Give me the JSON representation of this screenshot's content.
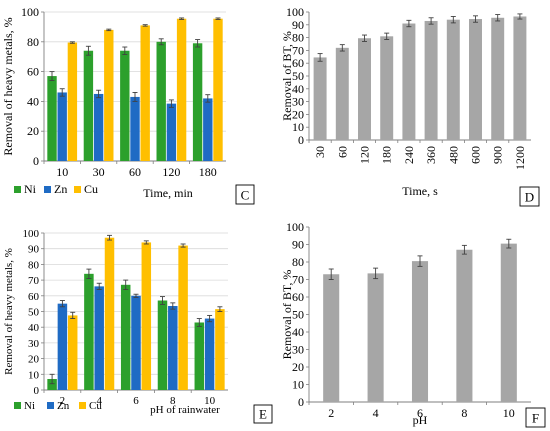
{
  "colors": {
    "Ni": "#2ca02c",
    "Zn": "#1f6bc4",
    "Cu": "#ffbf00",
    "gray": "#a6a6a6",
    "axis": "#7f7f7f",
    "grid": "#d9d9d9",
    "err": "#404040"
  },
  "chart_data": [
    {
      "id": "C",
      "type": "bar",
      "panel_label": "C",
      "title": "",
      "xlabel": "Time, min",
      "ylabel": "Removal of heavy metals, %",
      "categories": [
        "10",
        "30",
        "60",
        "120",
        "180"
      ],
      "ylim": [
        0,
        100
      ],
      "yticks": [
        0,
        20,
        40,
        60,
        80,
        100
      ],
      "grid": true,
      "legend_position": "bottom-left",
      "series": [
        {
          "name": "Ni",
          "values": [
            57,
            74,
            74,
            80,
            79
          ],
          "errors": [
            3,
            3,
            2.5,
            2,
            2.5
          ]
        },
        {
          "name": "Zn",
          "values": [
            46,
            45,
            43,
            38.5,
            42
          ],
          "errors": [
            2.5,
            2.5,
            3,
            2.5,
            2.5
          ]
        },
        {
          "name": "Cu",
          "values": [
            79.5,
            88,
            91,
            95.5,
            95.5
          ],
          "errors": [
            0.5,
            0.5,
            0.5,
            0.5,
            0.5
          ]
        }
      ]
    },
    {
      "id": "D",
      "type": "bar",
      "panel_label": "D",
      "title": "",
      "xlabel": "Time, s",
      "ylabel": "Removal of BT, %",
      "categories": [
        "30",
        "60",
        "120",
        "180",
        "240",
        "360",
        "480",
        "600",
        "900",
        "1200"
      ],
      "ylim": [
        0,
        100
      ],
      "yticks": [
        0,
        10,
        20,
        30,
        40,
        50,
        60,
        70,
        80,
        90,
        100
      ],
      "grid": false,
      "series": [
        {
          "name": "",
          "values": [
            64.5,
            72,
            79.5,
            81,
            91,
            93,
            94,
            94.5,
            95.5,
            96.5
          ],
          "errors": [
            3,
            2.5,
            2.5,
            2.5,
            2.5,
            2.5,
            2.5,
            2.5,
            2.5,
            2
          ]
        }
      ]
    },
    {
      "id": "E",
      "type": "bar",
      "panel_label": "E",
      "title": "",
      "xlabel": "pH of rainwater",
      "ylabel": "Removal of heavy metals, %",
      "categories": [
        "2",
        "4",
        "6",
        "8",
        "10"
      ],
      "ylim": [
        0,
        100
      ],
      "yticks": [
        0,
        10,
        20,
        30,
        40,
        50,
        60,
        70,
        80,
        90,
        100
      ],
      "grid": true,
      "legend_position": "bottom-left",
      "series": [
        {
          "name": "Ni",
          "values": [
            7,
            74,
            67,
            57,
            43
          ],
          "errors": [
            3,
            3,
            3,
            2.5,
            2.5
          ]
        },
        {
          "name": "Zn",
          "values": [
            55,
            66,
            60,
            53.5,
            45.5
          ],
          "errors": [
            2,
            2,
            1,
            2,
            2
          ]
        },
        {
          "name": "Cu",
          "values": [
            47.5,
            97,
            94,
            92,
            51.5
          ],
          "errors": [
            2,
            1.5,
            1,
            1,
            1.5
          ]
        }
      ]
    },
    {
      "id": "F",
      "type": "bar",
      "panel_label": "F",
      "title": "",
      "xlabel": "pH",
      "ylabel": "Removal of BT, %",
      "categories": [
        "2",
        "4",
        "6",
        "8",
        "10"
      ],
      "ylim": [
        0,
        100
      ],
      "yticks": [
        0,
        10,
        20,
        30,
        40,
        50,
        60,
        70,
        80,
        90,
        100
      ],
      "grid": false,
      "series": [
        {
          "name": "",
          "values": [
            73,
            73.5,
            80.5,
            87,
            90.5
          ],
          "errors": [
            3,
            3,
            3,
            2.5,
            2.5
          ]
        }
      ]
    }
  ]
}
